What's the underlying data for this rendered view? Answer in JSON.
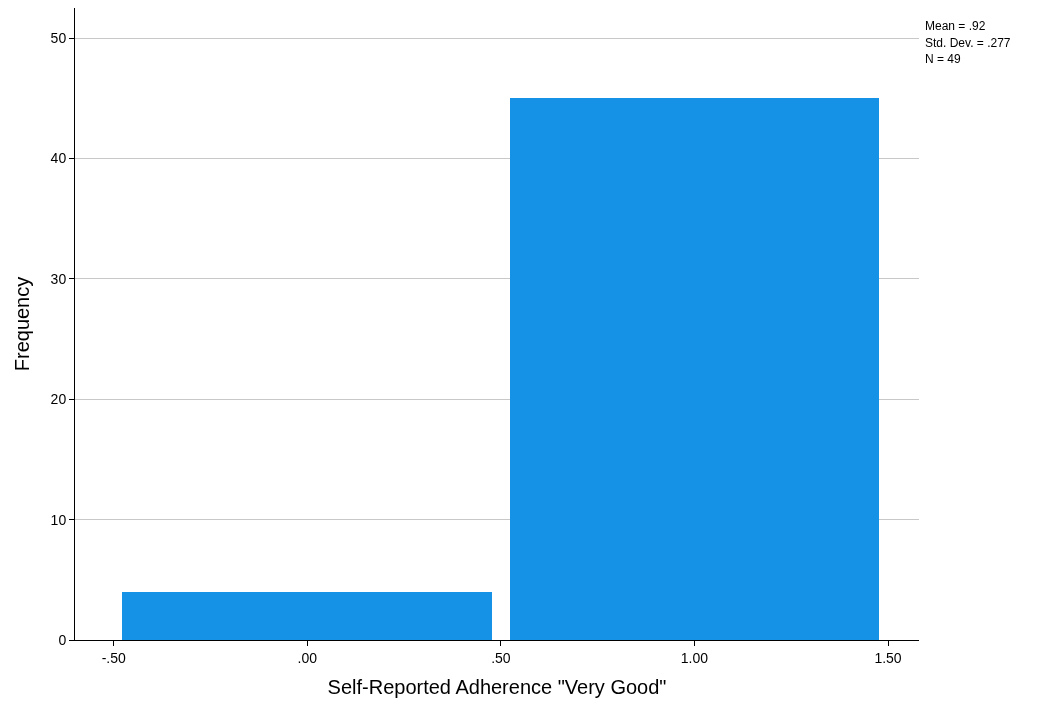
{
  "chart_data": {
    "type": "histogram",
    "xlabel": "Self-Reported Adherence \"Very Good\"",
    "ylabel": "Frequency",
    "bins": [
      -0.5,
      0.5,
      1.5
    ],
    "values": [
      4,
      45
    ],
    "color": "#1591e5",
    "xlim": [
      -0.6,
      1.58
    ],
    "xticks": [
      {
        "value": -0.5,
        "label": "-.50"
      },
      {
        "value": 0,
        "label": ".00"
      },
      {
        "value": 0.5,
        "label": ".50"
      },
      {
        "value": 1,
        "label": "1.00"
      },
      {
        "value": 1.5,
        "label": "1.50"
      }
    ],
    "ylim": [
      0,
      52.5
    ],
    "yticks": [
      0,
      10,
      20,
      30,
      40,
      50
    ],
    "grid": "y",
    "annotations": [
      "Mean = .92",
      "Std. Dev. = .277",
      "N = 49"
    ]
  }
}
